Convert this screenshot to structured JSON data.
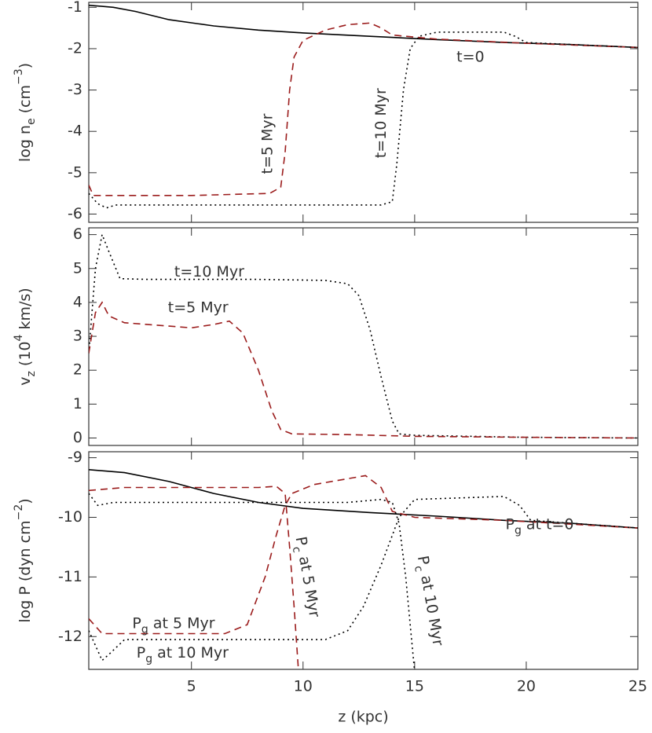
{
  "chart_data": [
    {
      "type": "line",
      "ylabel": [
        {
          "text": "log n"
        },
        {
          "text": "e",
          "shift": "sub"
        },
        {
          "text": " (cm"
        },
        {
          "text": "−3",
          "shift": "super"
        },
        {
          "text": ")"
        }
      ],
      "xlim": [
        0.4,
        25
      ],
      "xticks": [
        5,
        10,
        15,
        20,
        25
      ],
      "ylim": [
        -6.2,
        -0.88
      ],
      "yticks": [
        -6,
        -5,
        -4,
        -3,
        -2,
        -1
      ],
      "series": [
        {
          "color": "#000000",
          "dash": "solid",
          "x": [
            0.4,
            1.5,
            2.5,
            4,
            6,
            8,
            10,
            13,
            16,
            19,
            22,
            25
          ],
          "values": [
            -0.95,
            -1.0,
            -1.1,
            -1.3,
            -1.45,
            -1.55,
            -1.62,
            -1.7,
            -1.78,
            -1.85,
            -1.9,
            -1.97
          ]
        },
        {
          "color": "#9b1c1c",
          "dash": "dashed",
          "x": [
            0.4,
            0.6,
            1,
            5,
            8.5,
            9,
            9.2,
            9.4,
            9.6,
            10,
            11,
            12,
            13,
            13.5,
            14,
            16,
            20,
            25
          ],
          "values": [
            -5.3,
            -5.55,
            -5.55,
            -5.55,
            -5.5,
            -5.35,
            -4.5,
            -3,
            -2.2,
            -1.8,
            -1.55,
            -1.42,
            -1.38,
            -1.5,
            -1.67,
            -1.77,
            -1.87,
            -1.97
          ]
        },
        {
          "color": "#000000",
          "dash": "dotted",
          "x": [
            0.4,
            0.8,
            1.2,
            1.6,
            5,
            13.5,
            14,
            14.2,
            14.5,
            14.8,
            15.2,
            16,
            19,
            19.5,
            20,
            25
          ],
          "values": [
            -5.5,
            -5.75,
            -5.85,
            -5.78,
            -5.78,
            -5.78,
            -5.7,
            -4.8,
            -3,
            -2.0,
            -1.7,
            -1.6,
            -1.6,
            -1.7,
            -1.85,
            -1.97
          ]
        }
      ],
      "annotations": [
        [
          {
            "text": "t=0"
          }
        ],
        [
          {
            "text": "t=5 Myr"
          }
        ],
        [
          {
            "text": "t=10 Myr"
          }
        ]
      ]
    },
    {
      "type": "line",
      "ylabel": [
        {
          "text": "v"
        },
        {
          "text": "z",
          "shift": "sub"
        },
        {
          "text": " (10"
        },
        {
          "text": "4",
          "shift": "super"
        },
        {
          "text": " km/s)"
        }
      ],
      "xlim": [
        0.4,
        25
      ],
      "xticks": [
        5,
        10,
        15,
        20,
        25
      ],
      "ylim": [
        -0.22,
        6.2
      ],
      "yticks": [
        0,
        1,
        2,
        3,
        4,
        5,
        6
      ],
      "series": [
        {
          "color": "#000000",
          "dash": "dotted",
          "x": [
            0.4,
            0.7,
            1,
            1.3,
            1.8,
            3,
            8,
            11,
            12,
            12.5,
            13,
            13.5,
            14,
            14.3,
            15,
            20,
            25
          ],
          "values": [
            2.5,
            5,
            6.0,
            5.5,
            4.7,
            4.68,
            4.68,
            4.65,
            4.55,
            4.2,
            3.2,
            1.8,
            0.5,
            0.12,
            0.08,
            0.02,
            0
          ]
        },
        {
          "color": "#9b1c1c",
          "dash": "dashed",
          "x": [
            0.4,
            0.7,
            1,
            1.3,
            2,
            4,
            5,
            6,
            6.7,
            7.3,
            8,
            8.6,
            9,
            9.5,
            12,
            15,
            20,
            25
          ],
          "values": [
            2.5,
            3.7,
            4.0,
            3.6,
            3.4,
            3.3,
            3.25,
            3.35,
            3.45,
            3.1,
            2.0,
            0.8,
            0.25,
            0.12,
            0.1,
            0.05,
            0.02,
            0
          ]
        }
      ],
      "annotations": [
        [
          {
            "text": "t=10 Myr"
          }
        ],
        [
          {
            "text": "t=5 Myr"
          }
        ]
      ]
    },
    {
      "type": "line",
      "xlabel": "z (kpc)",
      "ylabel": [
        {
          "text": "log P (dyn cm"
        },
        {
          "text": "−2",
          "shift": "super"
        },
        {
          "text": ")"
        }
      ],
      "xlim": [
        0.4,
        25
      ],
      "xticks": [
        5,
        10,
        15,
        20,
        25
      ],
      "ylim": [
        -12.55,
        -8.9
      ],
      "yticks": [
        -12,
        -11,
        -10,
        -9
      ],
      "series": [
        {
          "color": "#000000",
          "dash": "solid",
          "x": [
            0.4,
            2,
            4,
            6,
            8,
            10,
            13,
            16,
            19,
            22,
            25
          ],
          "values": [
            -9.2,
            -9.25,
            -9.4,
            -9.6,
            -9.75,
            -9.85,
            -9.92,
            -9.98,
            -10.05,
            -10.1,
            -10.18
          ]
        },
        {
          "color": "#9b1c1c",
          "dash": "dashed",
          "x": [
            0.4,
            1,
            6.5,
            7.5,
            8.3,
            8.8,
            9.2,
            9.5,
            10.5,
            12.8,
            13.5,
            14,
            15,
            19,
            25
          ],
          "values": [
            -11.7,
            -11.95,
            -11.95,
            -11.8,
            -11.0,
            -10.3,
            -9.8,
            -9.6,
            -9.45,
            -9.3,
            -9.5,
            -9.9,
            -10.0,
            -10.05,
            -10.18
          ]
        },
        {
          "color": "#9b1c1c",
          "dash": "dashed",
          "x": [
            0.4,
            2,
            8,
            8.8,
            9.2,
            9.4,
            9.6,
            9.8
          ],
          "values": [
            -9.55,
            -9.5,
            -9.5,
            -9.48,
            -9.6,
            -10.5,
            -11.5,
            -12.6
          ]
        },
        {
          "color": "#000000",
          "dash": "dotted",
          "x": [
            0.4,
            1,
            1.3,
            2,
            11,
            12,
            12.7,
            13.5,
            14.3,
            15,
            19,
            19.7,
            20.2,
            25
          ],
          "values": [
            -11.9,
            -12.4,
            -12.3,
            -12.05,
            -12.05,
            -11.9,
            -11.5,
            -10.8,
            -10.0,
            -9.7,
            -9.65,
            -9.8,
            -10.05,
            -10.18
          ]
        },
        {
          "color": "#000000",
          "dash": "dotted",
          "x": [
            0.4,
            0.8,
            1.5,
            12,
            13.5,
            14,
            14.3,
            14.6,
            14.85,
            15
          ],
          "values": [
            -9.6,
            -9.8,
            -9.75,
            -9.75,
            -9.7,
            -9.75,
            -10.1,
            -11,
            -12,
            -12.6
          ]
        }
      ],
      "annotations": [
        [
          {
            "text": "P"
          },
          {
            "text": "g",
            "shift": "sub"
          },
          {
            "text": " at t=0"
          }
        ],
        [
          {
            "text": "P"
          },
          {
            "text": "c",
            "shift": "sub"
          },
          {
            "text": " at 5 Myr"
          }
        ],
        [
          {
            "text": "P"
          },
          {
            "text": "c",
            "shift": "sub"
          },
          {
            "text": " at 10 Myr"
          }
        ],
        [
          {
            "text": "P"
          },
          {
            "text": "g",
            "shift": "sub"
          },
          {
            "text": " at 5 Myr"
          }
        ],
        [
          {
            "text": "P"
          },
          {
            "text": "g",
            "shift": "sub"
          },
          {
            "text": " at 10 Myr"
          }
        ]
      ]
    }
  ]
}
